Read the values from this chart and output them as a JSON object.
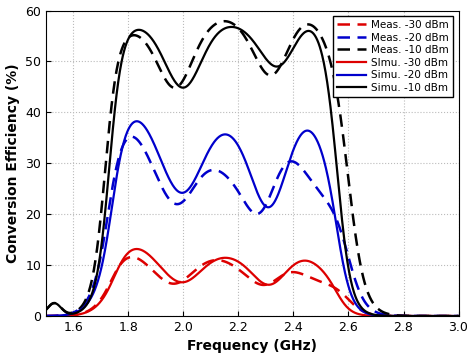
{
  "title": "",
  "xlabel": "Frequency (GHz)",
  "ylabel": "Conversion Efficiency (%)",
  "xlim": [
    1.5,
    3.0
  ],
  "ylim": [
    0,
    60
  ],
  "xticks": [
    1.6,
    1.8,
    2.0,
    2.2,
    2.4,
    2.6,
    2.8,
    3.0
  ],
  "yticks": [
    0,
    10,
    20,
    30,
    40,
    50,
    60
  ],
  "legend": [
    {
      "label": "Meas. -30 dBm",
      "color": "#dd0000",
      "linestyle": "dashed"
    },
    {
      "label": "Meas. -20 dBm",
      "color": "#0000cc",
      "linestyle": "dashed"
    },
    {
      "label": "Meas. -10 dBm",
      "color": "#000000",
      "linestyle": "dashed"
    },
    {
      "label": "SImu. -30 dBm",
      "color": "#dd0000",
      "linestyle": "solid"
    },
    {
      "label": "Simu. -20 dBm",
      "color": "#0000cc",
      "linestyle": "solid"
    },
    {
      "label": "Simu. -10 dBm",
      "color": "#000000",
      "linestyle": "solid"
    }
  ],
  "background_color": "#ffffff",
  "grid_color": "#cccccc"
}
